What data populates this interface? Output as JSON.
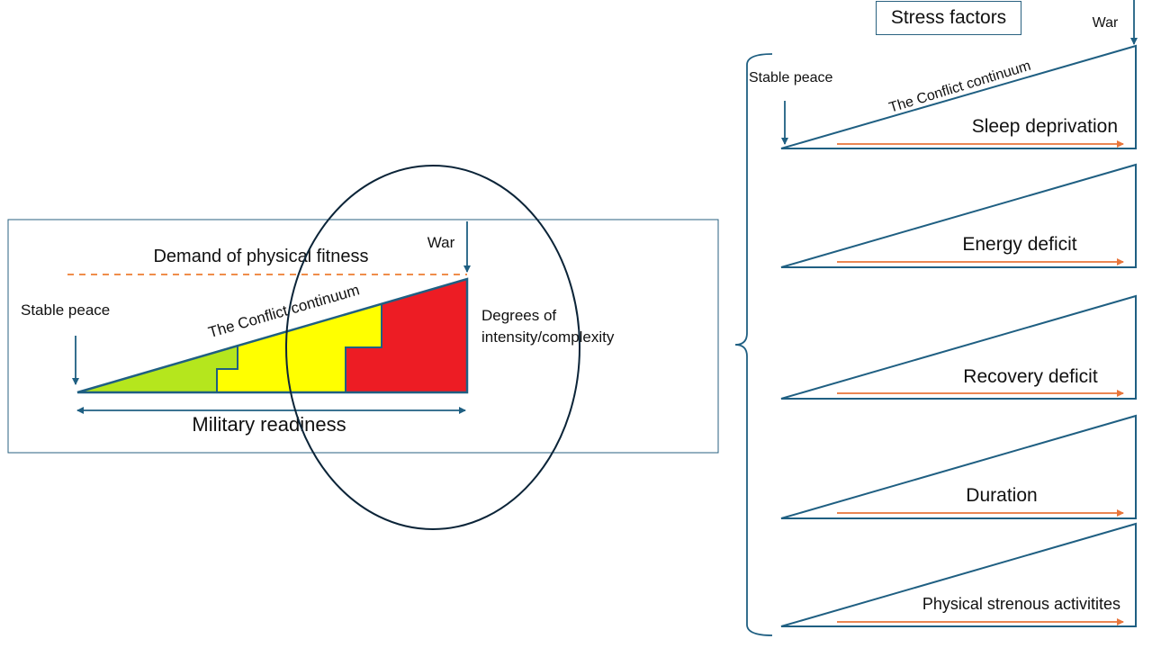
{
  "colors": {
    "line": "#1f5f82",
    "dashed": "#ed7d31",
    "arrow_orange": "#e8753a",
    "green": "#b5e61d",
    "yellow": "#ffff00",
    "red": "#ed1c24",
    "ellipse": "#0b2438"
  },
  "left_panel": {
    "demand_label": "Demand of physical fitness",
    "war_label": "War",
    "stable_peace_label": "Stable peace",
    "continuum_label": "The Conflict continuum",
    "degrees_line1": "Degrees of",
    "degrees_line2": "intensity/complexity",
    "readiness_label": "Military readiness"
  },
  "right_panel": {
    "stress_factors_title": "Stress factors",
    "war_label": "War",
    "stable_peace_label": "Stable peace",
    "continuum_label": "The Conflict continuum",
    "factors": [
      {
        "label": "Sleep deprivation"
      },
      {
        "label": "Energy deficit"
      },
      {
        "label": "Recovery deficit"
      },
      {
        "label": "Duration"
      },
      {
        "label": "Physical strenous activitites"
      }
    ]
  }
}
